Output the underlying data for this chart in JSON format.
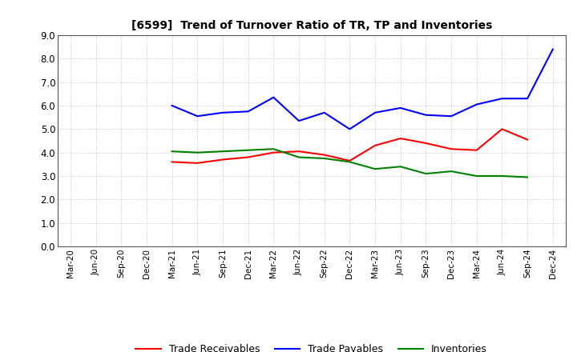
{
  "title": "[6599]  Trend of Turnover Ratio of TR, TP and Inventories",
  "x_labels": [
    "Mar-20",
    "Jun-20",
    "Sep-20",
    "Dec-20",
    "Mar-21",
    "Jun-21",
    "Sep-21",
    "Dec-21",
    "Mar-22",
    "Jun-22",
    "Sep-22",
    "Dec-22",
    "Mar-23",
    "Jun-23",
    "Sep-23",
    "Dec-23",
    "Mar-24",
    "Jun-24",
    "Sep-24",
    "Dec-24"
  ],
  "trade_receivables": [
    null,
    null,
    null,
    null,
    3.6,
    3.55,
    3.7,
    3.8,
    4.0,
    4.05,
    3.9,
    3.65,
    4.3,
    4.6,
    4.4,
    4.15,
    4.1,
    5.0,
    4.55,
    null
  ],
  "trade_payables": [
    null,
    null,
    null,
    null,
    6.0,
    5.55,
    5.7,
    5.75,
    6.35,
    5.35,
    5.7,
    5.0,
    5.7,
    5.9,
    5.6,
    5.55,
    6.05,
    6.3,
    6.3,
    8.4
  ],
  "inventories": [
    null,
    null,
    null,
    null,
    4.05,
    4.0,
    4.05,
    4.1,
    4.15,
    3.8,
    3.75,
    3.6,
    3.3,
    3.4,
    3.1,
    3.2,
    3.0,
    3.0,
    2.95,
    null
  ],
  "ylim": [
    0.0,
    9.0
  ],
  "yticks": [
    0.0,
    1.0,
    2.0,
    3.0,
    4.0,
    5.0,
    6.0,
    7.0,
    8.0,
    9.0
  ],
  "color_tr": "#ff0000",
  "color_tp": "#0000ff",
  "color_inv": "#008000",
  "legend_labels": [
    "Trade Receivables",
    "Trade Payables",
    "Inventories"
  ],
  "bg_color": "#ffffff",
  "grid_color": "#bbbbbb"
}
